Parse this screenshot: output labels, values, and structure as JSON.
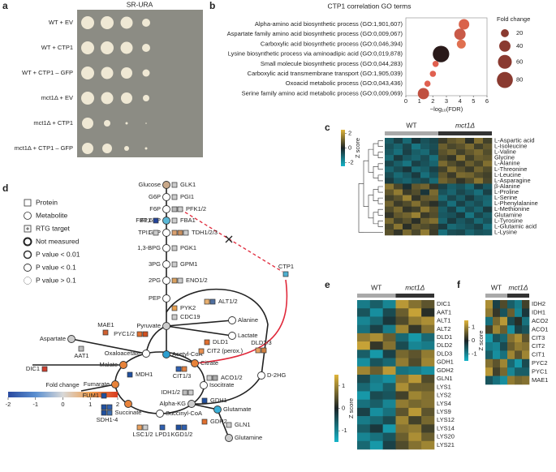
{
  "panel_labels": [
    "a",
    "b",
    "c",
    "d",
    "e",
    "f"
  ],
  "spot_assay": {
    "title": "SR-URA",
    "rows": [
      "WT + EV",
      "WT + CTP1",
      "WT + CTP1 – GFP",
      "mct1Δ + EV",
      "mct1Δ + CTP1",
      "mct1Δ + CTP1 – GFP"
    ]
  },
  "chart_data": [
    {
      "type": "scatter",
      "title": "CTP1 correlation GO terms",
      "categories": [
        "Alpha-amino acid biosynthetic process (GO:1,901,607)",
        "Aspartate family amino acid biosynthetic process (GO:0,009,067)",
        "Carboxylic acid biosynthetic process (GO:0,046,394)",
        "Lysine biosynthetic process via aminoadipic acid (GO:0,019,878)",
        "Small molecule biosynthetic process (GO:0,044,283)",
        "Carboxylic acid transmembrane transport (GO:1,905,039)",
        "Oxoacid metabolic process (GO:0,043,436)",
        "Serine family amino acid metabolic process (GO:0,009,069)"
      ],
      "values": [
        4.3,
        4.0,
        4.1,
        2.6,
        2.2,
        2.0,
        1.6,
        1.3
      ],
      "sizes": [
        35,
        40,
        25,
        85,
        12,
        12,
        12,
        40
      ],
      "colors": [
        "#d9624a",
        "#c95a48",
        "#e07050",
        "#2a1a1a",
        "#e06050",
        "#e06050",
        "#e06050",
        "#c05040"
      ],
      "xlim": [
        0,
        6
      ],
      "xticks": [
        0,
        1,
        2,
        3,
        4,
        5,
        6
      ],
      "x_label": "−log₁₀(FDR)",
      "size_legend": {
        "title": "Fold change",
        "values": [
          20,
          40,
          60,
          80
        ]
      }
    },
    {
      "type": "heatmap",
      "zlim": [
        -2.5,
        2.5
      ],
      "zticks": [
        -2,
        0,
        2
      ],
      "colorbar_label": "Z score",
      "rows": [
        "L-Aspartic acid",
        "L-Isoleucine",
        "L-Valine",
        "Glycine",
        "L-Alanine",
        "L-Threonine",
        "L-Leucine",
        "L-Asparagine",
        "β-Alanine",
        "L-Proline",
        "L-Serine",
        "L-Phenylalanine",
        "L-Methionine",
        "Glutamine",
        "L-Tyrosine",
        "L-Glutamic acid",
        "L-Lysine"
      ],
      "series": [
        {
          "name": "WT",
          "color": "#a9a9a9",
          "values": [
            [
              -1.0,
              -0.5,
              -1.2,
              -0.3,
              -0.8,
              -0.6
            ],
            [
              -0.8,
              -1.1,
              -0.6,
              -1.4,
              -0.9,
              -0.7
            ],
            [
              -0.9,
              -1.3,
              -0.5,
              -1.0,
              -1.2,
              -0.6
            ],
            [
              -1.2,
              -0.4,
              -0.9,
              -1.1,
              -0.7,
              -1.3
            ],
            [
              -0.6,
              -1.0,
              -1.4,
              -0.5,
              -0.8,
              -1.1
            ],
            [
              -1.1,
              -0.7,
              -0.3,
              -1.2,
              -1.0,
              -0.5
            ],
            [
              -0.7,
              -1.2,
              -0.9,
              -0.4,
              -1.3,
              -0.8
            ],
            [
              -0.4,
              -0.9,
              -1.1,
              -0.8,
              -0.6,
              -1.2
            ],
            [
              1.4,
              0.6,
              -0.2,
              0.9,
              1.1,
              0.3
            ],
            [
              0.9,
              1.5,
              0.4,
              0.7,
              -0.3,
              1.2
            ],
            [
              0.5,
              0.8,
              1.6,
              0.3,
              0.9,
              1.0
            ],
            [
              1.1,
              0.4,
              0.7,
              1.3,
              0.6,
              0.2
            ],
            [
              0.7,
              1.2,
              0.3,
              0.5,
              1.4,
              0.8
            ],
            [
              0.3,
              0.9,
              1.1,
              1.6,
              0.4,
              0.7
            ],
            [
              1.2,
              0.5,
              0.8,
              0.2,
              1.0,
              1.3
            ],
            [
              0.6,
              1.4,
              0.2,
              0.9,
              0.7,
              0.5
            ],
            [
              0.8,
              0.3,
              1.2,
              0.6,
              1.5,
              0.4
            ]
          ]
        },
        {
          "name": "mct1Δ",
          "color": "#333333",
          "values": [
            [
              0.4,
              0.9,
              1.1,
              0.2,
              1.3,
              0.5
            ],
            [
              1.0,
              0.6,
              0.8,
              1.2,
              0.5,
              0.9
            ],
            [
              0.8,
              1.1,
              0.5,
              0.9,
              1.2,
              0.7
            ],
            [
              0.6,
              0.3,
              1.4,
              0.5,
              1.0,
              0.9
            ],
            [
              1.2,
              0.7,
              0.4,
              1.0,
              0.6,
              1.3
            ],
            [
              0.5,
              1.3,
              0.8,
              0.4,
              1.1,
              0.7
            ],
            [
              0.9,
              0.4,
              1.2,
              1.1,
              0.7,
              0.5
            ],
            [
              1.1,
              0.8,
              0.3,
              0.7,
              1.4,
              0.6
            ],
            [
              -0.5,
              -1.0,
              -0.8,
              -1.2,
              -0.4,
              -0.9
            ],
            [
              -0.8,
              -1.1,
              -0.6,
              -0.9,
              -1.3,
              -0.5
            ],
            [
              -1.2,
              -0.6,
              -1.0,
              -0.4,
              -0.9,
              -1.1
            ],
            [
              -0.6,
              -1.3,
              -0.5,
              -1.0,
              -0.7,
              -1.2
            ],
            [
              -1.0,
              -0.5,
              -1.3,
              -0.7,
              -1.1,
              -0.4
            ],
            [
              -0.9,
              -0.8,
              -0.4,
              -1.4,
              -0.6,
              -1.0
            ],
            [
              -1.1,
              -0.4,
              -0.9,
              -0.6,
              -1.2,
              -0.8
            ],
            [
              -0.4,
              -1.2,
              -1.0,
              -0.8,
              -0.5,
              -1.3
            ],
            [
              -1.3,
              -0.7,
              -0.6,
              -1.1,
              -0.8,
              -0.9
            ]
          ]
        }
      ]
    },
    {
      "type": "heatmap",
      "zlim": [
        -1.5,
        1.5
      ],
      "zticks": [
        -1,
        0,
        1
      ],
      "colorbar_label": "Z score",
      "rows": [
        "DIC1",
        "AAT1",
        "ALT1",
        "ALT2",
        "DLD1",
        "DLD2",
        "DLD3",
        "GDH1",
        "GDH2",
        "GLN1",
        "LYS1",
        "LYS2",
        "LYS4",
        "LYS9",
        "LYS12",
        "LYS14",
        "LYS20",
        "LYS21"
      ],
      "series": [
        {
          "name": "WT",
          "color": "#a9a9a9",
          "values": [
            [
              -0.9,
              -0.6,
              -1.0
            ],
            [
              -0.5,
              -1.1,
              -0.4
            ],
            [
              -1.0,
              -0.7,
              -0.2
            ],
            [
              -0.8,
              -0.3,
              -0.9
            ],
            [
              0.9,
              1.1,
              0.6
            ],
            [
              1.3,
              0.2,
              0.8
            ],
            [
              -0.6,
              -1.2,
              -0.3
            ],
            [
              -1.1,
              -0.5,
              -0.7
            ],
            [
              1.0,
              0.6,
              1.2
            ],
            [
              -0.4,
              -0.9,
              -1.1
            ],
            [
              -0.7,
              -1.0,
              -0.6
            ],
            [
              -1.2,
              -0.4,
              -0.5
            ],
            [
              -0.8,
              -0.6,
              -1.0
            ],
            [
              -0.3,
              -1.1,
              -0.8
            ],
            [
              -0.9,
              -0.7,
              -0.4
            ],
            [
              -0.6,
              -0.2,
              -1.2
            ],
            [
              -1.0,
              -0.8,
              -0.5
            ],
            [
              -0.7,
              -1.2,
              -0.3
            ]
          ]
        },
        {
          "name": "mct1Δ",
          "color": "#333333",
          "values": [
            [
              1.2,
              0.8,
              0.5
            ],
            [
              0.6,
              1.3,
              0.1
            ],
            [
              0.4,
              0.9,
              1.1
            ],
            [
              1.0,
              0.2,
              0.8
            ],
            [
              -0.7,
              -1.2,
              -0.7
            ],
            [
              -0.4,
              -1.0,
              -0.9
            ],
            [
              0.7,
              0.5,
              0.9
            ],
            [
              0.9,
              0.4,
              1.0
            ],
            [
              -0.8,
              -0.9,
              -1.1
            ],
            [
              0.8,
              1.2,
              0.4
            ],
            [
              1.1,
              0.6,
              0.6
            ],
            [
              0.3,
              1.0,
              0.8
            ],
            [
              0.9,
              0.7,
              0.8
            ],
            [
              0.5,
              1.2,
              0.5
            ],
            [
              1.0,
              0.3,
              0.7
            ],
            [
              0.8,
              0.9,
              0.3
            ],
            [
              0.6,
              1.1,
              0.6
            ],
            [
              0.4,
              0.8,
              1.0
            ]
          ]
        }
      ]
    },
    {
      "type": "heatmap",
      "zlim": [
        -1.5,
        1.5
      ],
      "zticks": [
        -1,
        0,
        1
      ],
      "colorbar_label": "Z score",
      "rows": [
        "IDH2",
        "IDH1",
        "ACO2",
        "ACO1",
        "CIT3",
        "CIT2",
        "CIT1",
        "PYC2",
        "PYC1",
        "MAE1"
      ],
      "series": [
        {
          "name": "WT",
          "color": "#a9a9a9",
          "values": [
            [
              1.1,
              -0.3,
              0.4
            ],
            [
              0.9,
              0.2,
              -0.5
            ],
            [
              -0.8,
              0.7,
              1.2
            ],
            [
              0.3,
              1.0,
              0.6
            ],
            [
              -1.2,
              -0.5,
              -0.7
            ],
            [
              -0.9,
              -1.0,
              -0.4
            ],
            [
              -0.6,
              -1.1,
              -0.8
            ],
            [
              0.8,
              0.5,
              1.0
            ],
            [
              1.2,
              0.3,
              0.7
            ],
            [
              -0.5,
              -0.8,
              -1.1
            ]
          ]
        },
        {
          "name": "mct1Δ",
          "color": "#333333",
          "values": [
            [
              -0.6,
              -0.9,
              0.3
            ],
            [
              0.6,
              -1.0,
              -0.2
            ],
            [
              -0.4,
              0.1,
              -0.8
            ],
            [
              -1.1,
              -0.3,
              -0.5
            ],
            [
              0.8,
              1.1,
              0.5
            ],
            [
              0.6,
              0.9,
              0.8
            ],
            [
              1.0,
              0.5,
              1.0
            ],
            [
              -0.7,
              -1.2,
              -0.4
            ],
            [
              -1.0,
              -0.6,
              -0.6
            ],
            [
              0.9,
              0.7,
              0.8
            ]
          ]
        }
      ]
    }
  ],
  "pathway": {
    "legend": [
      "Protein",
      "Metabolite",
      "RTG target",
      "Not measured",
      "P value < 0.01",
      "P value < 0.1",
      "P value > 0.1"
    ],
    "colorbar": {
      "title": "Fold change",
      "lim": [
        -2,
        2
      ],
      "ticks": [
        -2,
        -1,
        0,
        1,
        2
      ]
    },
    "metabolites": [
      "Glucose",
      "G6P",
      "F6P",
      "F1,6BP",
      "G3P",
      "1,3-BPG",
      "3PG",
      "2PG",
      "PEP",
      "Pyruvate",
      "Alanine",
      "Lactate",
      "Oxaloacetate",
      "Acetyl-CoA",
      "Citrate",
      "Isocitrate",
      "Alpha-KG",
      "Glutamate",
      "Glutamine",
      "Succinyl-CoA",
      "Succinate",
      "Fumarate",
      "Malate",
      "Aspartate",
      "D-2HG"
    ],
    "proteins": [
      "GLK1",
      "PGI1",
      "PFK1/2",
      "FBP1",
      "FBA1",
      "TPI1",
      "TDH1/2/3",
      "PGK1",
      "GPM1",
      "ENO1/2",
      "PYK2",
      "CDC19",
      "ALT1/2",
      "DLD1",
      "PYC1/2",
      "MAE1",
      "AAT1",
      "MDH1",
      "DIC1",
      "FUM1",
      "CIT1/3",
      "CIT2 (perox.)",
      "ACO1/2",
      "IDH1/2",
      "GDH1",
      "GDH2",
      "GLN1",
      "SDH1-4",
      "LSC1/2",
      "LPD1",
      "KGD1/2",
      "DLD2/3",
      "CTP1"
    ]
  }
}
